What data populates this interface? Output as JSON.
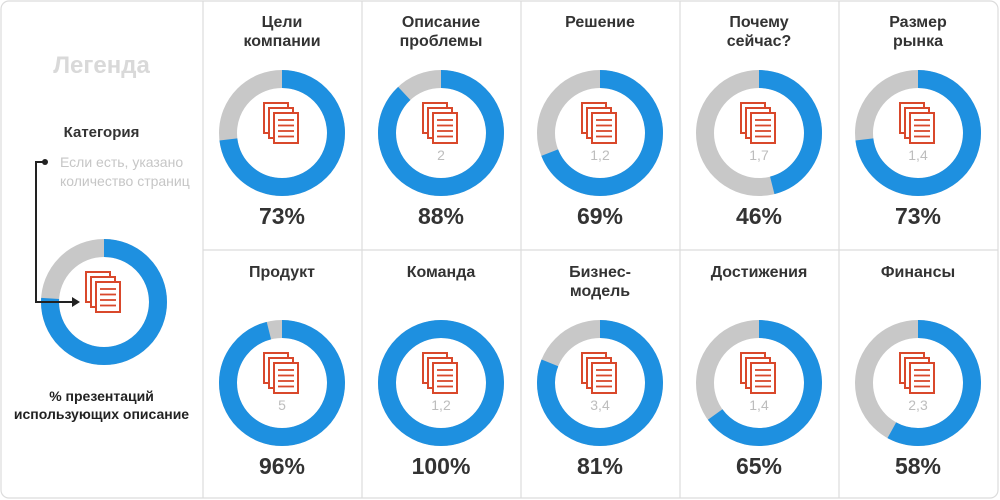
{
  "legend": {
    "title": "Легенда",
    "category_label": "Категория",
    "pages_note": "Если есть, указано количество страниц",
    "percent_caption": "% презентаций использующих описание",
    "example_percent": 76
  },
  "colors": {
    "fill": "#1e90e0",
    "track": "#c8c8c8",
    "icon": "#d9482b",
    "grid": "#dcdcdc"
  },
  "chart_data": {
    "type": "donut",
    "categories": [
      "Цели компании",
      "Описание проблемы",
      "Решение",
      "Почему сейчас?",
      "Размер рынка",
      "Продукт",
      "Команда",
      "Бизнес-модель",
      "Достижения",
      "Финансы"
    ],
    "title_lines": [
      [
        "Цели",
        "компании"
      ],
      [
        "Описание",
        "проблемы"
      ],
      [
        "Решение"
      ],
      [
        "Почему",
        "сейчас?"
      ],
      [
        "Размер",
        "рынка"
      ],
      [
        "Продукт"
      ],
      [
        "Команда"
      ],
      [
        "Бизнес-",
        "модель"
      ],
      [
        "Достижения"
      ],
      [
        "Финансы"
      ]
    ],
    "percent_labels": [
      "73%",
      "88%",
      "69%",
      "46%",
      "73%",
      "96%",
      "100%",
      "81%",
      "65%",
      "58%"
    ],
    "values": [
      73,
      88,
      69,
      46,
      73,
      96,
      100,
      81,
      65,
      58
    ],
    "pages": [
      "",
      "2",
      "1,2",
      "1,7",
      "1,4",
      "5",
      "1,2",
      "3,4",
      "1,4",
      "2,3"
    ]
  }
}
